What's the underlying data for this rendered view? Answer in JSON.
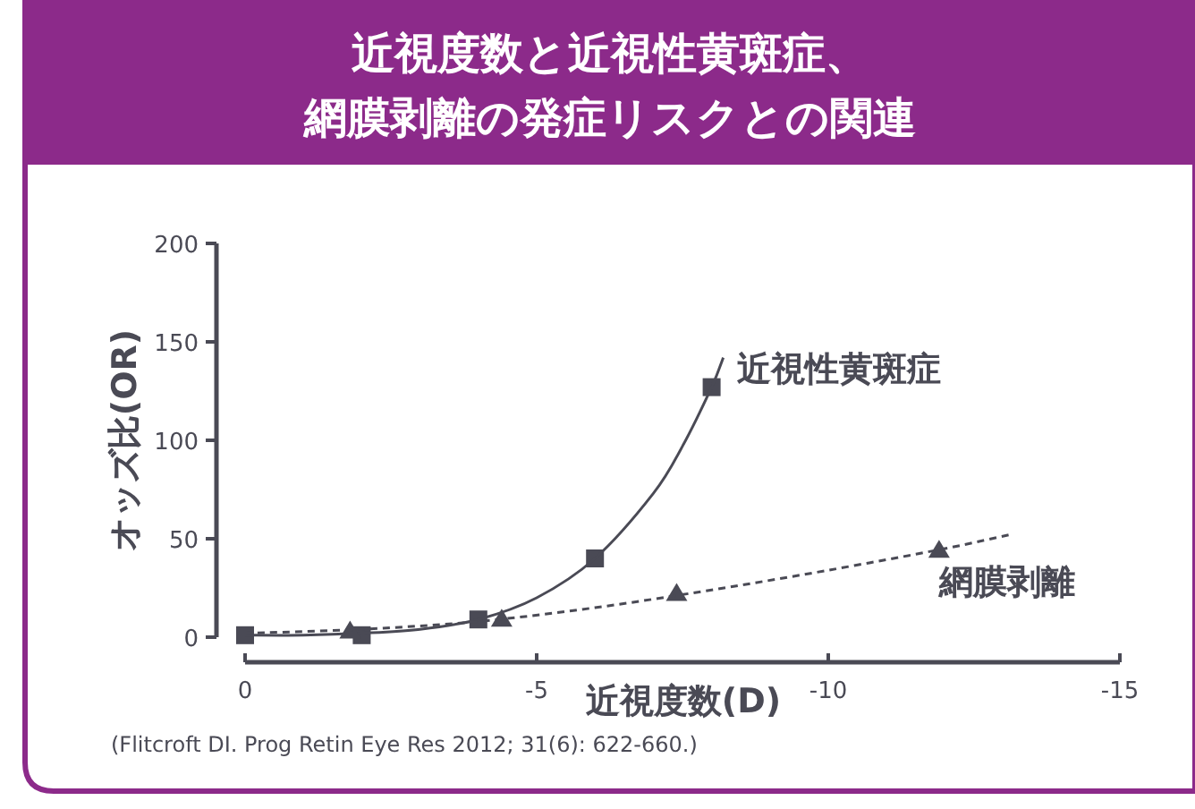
{
  "chart_data": {
    "type": "scatter",
    "title": "近視度数と近視性黄斑症、網膜剥離の発症リスクとの関連",
    "xlabel": "近視度数(D)",
    "ylabel": "オッズ比(OR)",
    "xlim": [
      0,
      -15
    ],
    "xticks": [
      0,
      -5,
      -10,
      -15
    ],
    "ylim": [
      0,
      200
    ],
    "yticks": [
      0,
      50,
      100,
      150,
      200
    ],
    "grid": false,
    "legend": false,
    "series": [
      {
        "name": "近視性黄斑症",
        "marker": "square",
        "color": "#4a4a55",
        "x": [
          0,
          -2,
          -4,
          -6,
          -8
        ],
        "values": [
          1,
          1,
          9,
          40,
          127
        ]
      },
      {
        "type": "line",
        "line_style": "solid",
        "marker": "none",
        "color": "#4a4a55",
        "x": [
          0,
          -1,
          -2,
          -3,
          -4,
          -5,
          -6,
          -7,
          -7.5,
          -8,
          -8.2
        ],
        "values": [
          1,
          1,
          2,
          4,
          9,
          20,
          40,
          73,
          97,
          127,
          142
        ]
      },
      {
        "name": "網膜剥離",
        "marker": "triangle",
        "color": "#4a4a55",
        "x": [
          -1.8,
          -4.4,
          -7.4,
          -11.9
        ],
        "values": [
          3,
          9,
          22,
          44
        ]
      },
      {
        "type": "line",
        "line_style": "dashed",
        "marker": "none",
        "color": "#4a4a55",
        "x": [
          0,
          -2,
          -4,
          -6,
          -8,
          -10,
          -12,
          -13.1
        ],
        "values": [
          2,
          4,
          8,
          15,
          24,
          34,
          45,
          52
        ]
      }
    ],
    "annotations": [
      "(Flitcroft DI. Prog Retin Eye Res 2012; 31(6): 622-660.)"
    ]
  }
}
